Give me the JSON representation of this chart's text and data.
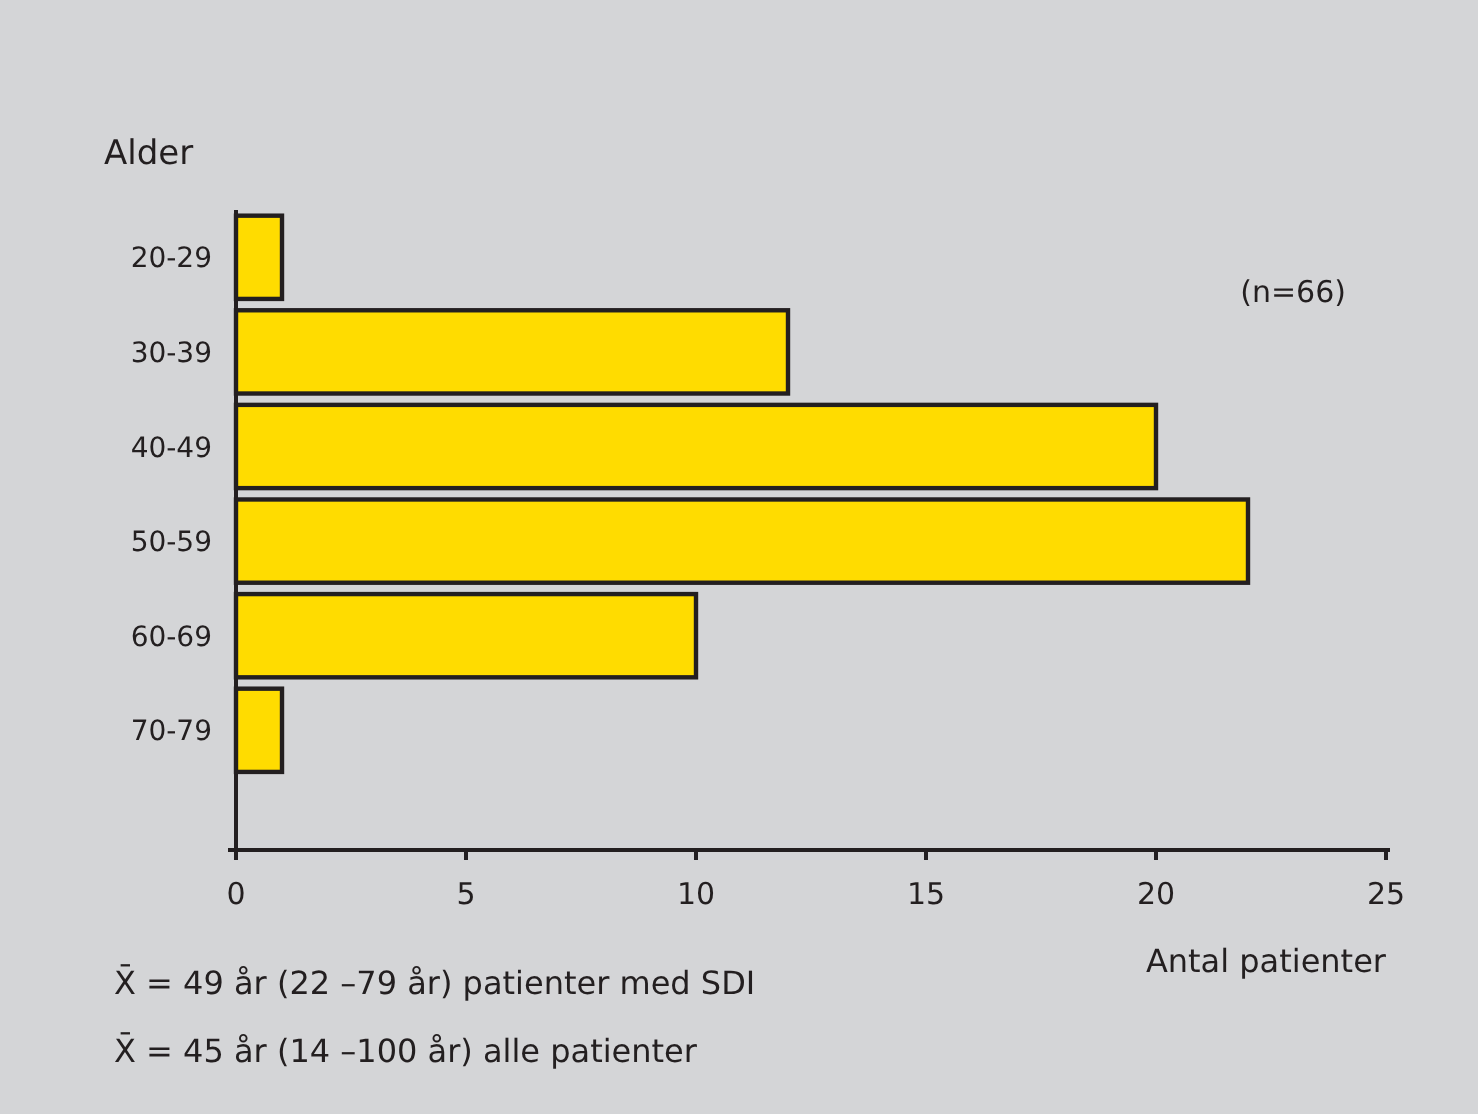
{
  "chart_data": {
    "type": "bar",
    "orientation": "horizontal",
    "ylabel": "Alder",
    "xlabel": "Antal patienter",
    "categories": [
      "20-29",
      "30-39",
      "40-49",
      "50-59",
      "60-69",
      "70-79"
    ],
    "values": [
      1,
      12,
      20,
      22,
      10,
      1
    ],
    "color": "#ffdc00",
    "xlim": [
      0,
      25
    ],
    "xticks": [
      0,
      5,
      10,
      15,
      20,
      25
    ],
    "grid": false,
    "annotations": [
      "(n=66)",
      "X̄ = 49 år (22 –79 år) patienter med SDI",
      "X̄ = 45 år (14 –100 år) alle patienter"
    ]
  }
}
